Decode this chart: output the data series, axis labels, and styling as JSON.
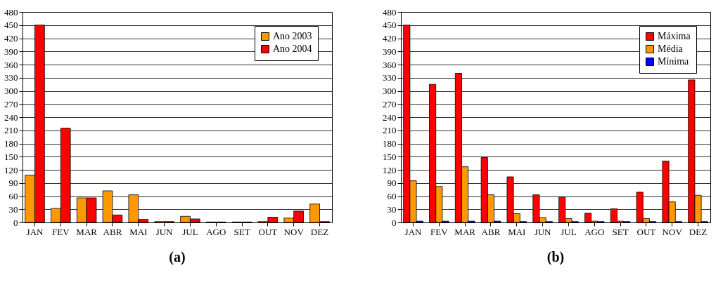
{
  "chart_data": [
    {
      "type": "bar",
      "title": "(a)",
      "categories": [
        "JAN",
        "FEV",
        "MAR",
        "ABR",
        "MAI",
        "JUN",
        "JUL",
        "AGO",
        "SET",
        "OUT",
        "NOV",
        "DEZ"
      ],
      "series": [
        {
          "name": "Ano 2003",
          "color": "#ff9900",
          "values": [
            108,
            32,
            56,
            72,
            63,
            2,
            14,
            1,
            1,
            2,
            10,
            42
          ]
        },
        {
          "name": "Ano 2004",
          "color": "#ff0000",
          "values": [
            450,
            215,
            56,
            17,
            7,
            2,
            8,
            1,
            1,
            12,
            26,
            2
          ]
        }
      ],
      "ylim": [
        0,
        480
      ],
      "yticks": [
        0,
        30,
        60,
        90,
        120,
        150,
        180,
        210,
        240,
        270,
        300,
        330,
        360,
        390,
        420,
        450,
        480
      ],
      "grid": "y",
      "legend": "top right"
    },
    {
      "type": "bar",
      "title": "(b)",
      "categories": [
        "JAN",
        "FEV",
        "MAR",
        "ABR",
        "MAI",
        "JUN",
        "JUL",
        "AGO",
        "SET",
        "OUT",
        "NOV",
        "DEZ"
      ],
      "series": [
        {
          "name": "Máxima",
          "color": "#ff0000",
          "values": [
            450,
            315,
            340,
            148,
            104,
            63,
            58,
            21,
            31,
            69,
            140,
            325
          ]
        },
        {
          "name": "Média",
          "color": "#ff9900",
          "values": [
            95,
            82,
            127,
            63,
            20,
            11,
            9,
            3,
            3,
            9,
            47,
            62
          ]
        },
        {
          "name": "Mínima",
          "color": "#0000ff",
          "values": [
            3,
            3,
            3,
            3,
            2,
            2,
            2,
            2,
            2,
            2,
            2,
            2
          ]
        }
      ],
      "ylim": [
        0,
        480
      ],
      "yticks": [
        0,
        30,
        60,
        90,
        120,
        150,
        180,
        210,
        240,
        270,
        300,
        330,
        360,
        390,
        420,
        450,
        480
      ],
      "grid": "y",
      "legend": "top right"
    }
  ]
}
